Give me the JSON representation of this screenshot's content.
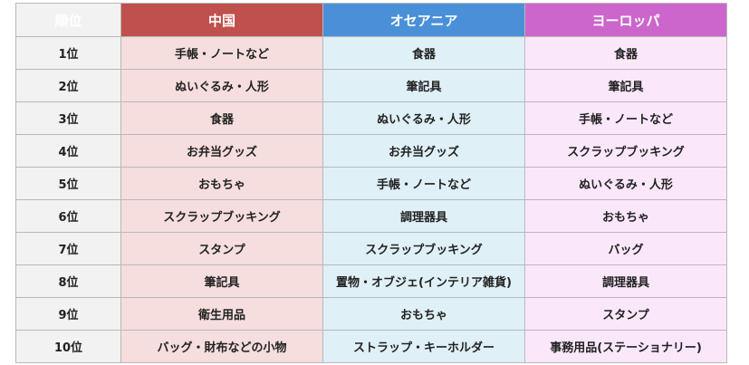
{
  "table": {
    "rank_header": "順位",
    "regions": [
      "中国",
      "オセアニア",
      "ヨーロッパ"
    ],
    "rows": [
      {
        "rank": "1位",
        "items": [
          "手帳・ノートなど",
          "食器",
          "食器"
        ]
      },
      {
        "rank": "2位",
        "items": [
          "ぬいぐるみ・人形",
          "筆記具",
          "筆記具"
        ]
      },
      {
        "rank": "3位",
        "items": [
          "食器",
          "ぬいぐるみ・人形",
          "手帳・ノートなど"
        ]
      },
      {
        "rank": "4位",
        "items": [
          "お弁当グッズ",
          "お弁当グッズ",
          "スクラップブッキング"
        ]
      },
      {
        "rank": "5位",
        "items": [
          "おもちゃ",
          "手帳・ノートなど",
          "ぬいぐるみ・人形"
        ]
      },
      {
        "rank": "6位",
        "items": [
          "スクラップブッキング",
          "調理器具",
          "おもちゃ"
        ]
      },
      {
        "rank": "7位",
        "items": [
          "スタンプ",
          "スクラップブッキング",
          "バッグ"
        ]
      },
      {
        "rank": "8位",
        "items": [
          "筆記具",
          "置物・オブジェ(インテリア雑貨)",
          "調理器具"
        ]
      },
      {
        "rank": "9位",
        "items": [
          "衛生用品",
          "おもちゃ",
          "スタンプ"
        ]
      },
      {
        "rank": "10位",
        "items": [
          "バッグ・財布などの小物",
          "ストラップ・キーホルダー",
          "事務用品(ステーショナリー)"
        ]
      }
    ],
    "colors": {
      "header": [
        "#c0504d",
        "#4a90d9",
        "#cc66cc"
      ],
      "cell": [
        "#f5dedd",
        "#dff0f6",
        "#fae8fa"
      ],
      "rank_bg": "#f2f2f2"
    }
  }
}
